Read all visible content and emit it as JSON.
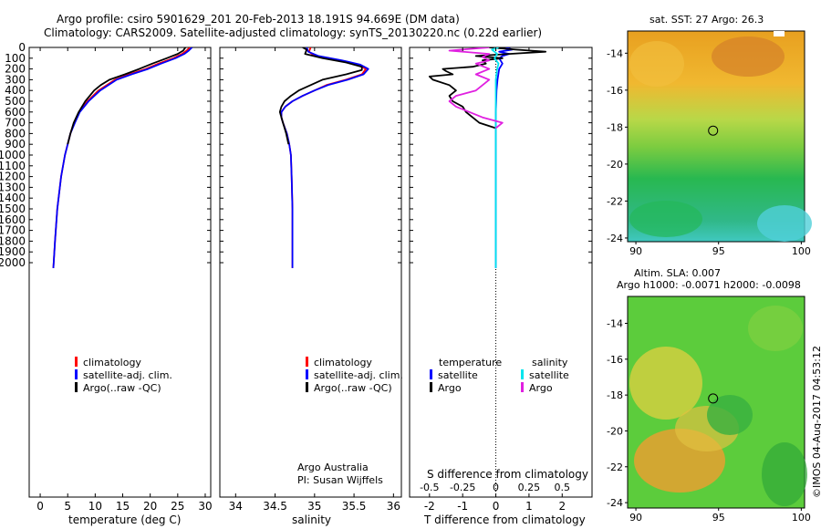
{
  "header": {
    "line1": "Argo profile: csiro 5901629_201 20-Feb-2013 18.191S 94.669E (DM data)",
    "line2": "Climatology: CARS2009. Satellite-adjusted climatology: synTS_20130220.nc (0.22d earlier)"
  },
  "colors": {
    "climatology": "#ff0000",
    "satellite": "#0000ff",
    "argo": "#000000",
    "sal_satellite": "#00e5ee",
    "sal_argo": "#e020e0"
  },
  "depth_ticks": [
    "0",
    "100",
    "200",
    "300",
    "400",
    "500",
    "600",
    "700",
    "800",
    "900",
    "1000",
    "1100",
    "1200",
    "1300",
    "1400",
    "1500",
    "1600",
    "1700",
    "1800",
    "1900",
    "2000"
  ],
  "chart_data": [
    {
      "type": "line",
      "xlabel": "temperature (deg C)",
      "ylabel": "",
      "xlim": [
        -2,
        31
      ],
      "ylim": [
        2050,
        0
      ],
      "xticks": [
        "0",
        "5",
        "10",
        "15",
        "20",
        "25",
        "30"
      ],
      "legend": [
        "climatology",
        "satellite-adj. clim.",
        "Argo(..raw -QC)"
      ],
      "series": [
        {
          "name": "climatology",
          "depth": [
            0,
            30,
            60,
            100,
            150,
            200,
            250,
            300,
            400,
            500,
            600,
            700,
            800,
            1000,
            1200,
            1500,
            1800,
            2050
          ],
          "values": [
            27.2,
            26.6,
            25.8,
            24.2,
            21.5,
            19.2,
            16.2,
            13.6,
            10.6,
            8.6,
            7.1,
            6.2,
            5.5,
            4.5,
            3.8,
            3.1,
            2.7,
            2.4
          ]
        },
        {
          "name": "satellite-adj. clim.",
          "depth": [
            0,
            30,
            60,
            100,
            150,
            200,
            250,
            300,
            400,
            500,
            600,
            700,
            800,
            1000,
            1200,
            1500,
            1800,
            2050
          ],
          "values": [
            27.6,
            27.0,
            26.2,
            24.6,
            22.0,
            19.6,
            16.6,
            13.9,
            10.9,
            8.8,
            7.2,
            6.3,
            5.5,
            4.5,
            3.8,
            3.1,
            2.7,
            2.4
          ]
        },
        {
          "name": "Argo(..raw -QC)",
          "depth": [
            0,
            30,
            60,
            100,
            150,
            200,
            250,
            300,
            350,
            400,
            500,
            600,
            700,
            800,
            900
          ],
          "values": [
            26.4,
            26.0,
            25.0,
            23.0,
            20.4,
            18.0,
            15.4,
            12.6,
            11.0,
            9.8,
            8.2,
            7.0,
            6.1,
            5.5,
            5.0
          ]
        }
      ]
    },
    {
      "type": "line",
      "xlabel": "salinity",
      "ylabel": "",
      "xlim": [
        33.8,
        36.1
      ],
      "ylim": [
        2050,
        0
      ],
      "xticks": [
        "34",
        "34.5",
        "35",
        "35.5",
        "36"
      ],
      "legend": [
        "climatology",
        "satellite-adj. clim.",
        "Argo(..raw -QC)"
      ],
      "annotation": [
        "Argo Australia",
        "PI: Susan Wijffels"
      ],
      "series": [
        {
          "name": "climatology",
          "depth": [
            0,
            40,
            80,
            120,
            160,
            200,
            250,
            300,
            350,
            400,
            450,
            500,
            550,
            600,
            650,
            700,
            800,
            900,
            1000,
            1200,
            1500,
            2050
          ],
          "values": [
            34.95,
            34.93,
            35.0,
            35.3,
            35.55,
            35.65,
            35.6,
            35.4,
            35.15,
            35.0,
            34.85,
            34.72,
            34.63,
            34.58,
            34.58,
            34.6,
            34.65,
            34.68,
            34.7,
            34.71,
            34.72,
            34.72
          ]
        },
        {
          "name": "satellite-adj. clim.",
          "depth": [
            0,
            40,
            80,
            120,
            160,
            200,
            250,
            300,
            350,
            400,
            450,
            500,
            550,
            600,
            650,
            700,
            800,
            900,
            1000,
            1200,
            1500,
            2050
          ],
          "values": [
            34.9,
            34.92,
            35.05,
            35.35,
            35.58,
            35.68,
            35.62,
            35.42,
            35.17,
            35.0,
            34.85,
            34.72,
            34.63,
            34.58,
            34.58,
            34.6,
            34.65,
            34.68,
            34.7,
            34.71,
            34.72,
            34.72
          ]
        },
        {
          "name": "Argo(..raw -QC)",
          "depth": [
            0,
            20,
            60,
            100,
            140,
            180,
            210,
            250,
            300,
            350,
            400,
            450,
            500,
            550,
            600,
            650,
            700,
            800,
            900
          ],
          "values": [
            34.85,
            34.9,
            34.88,
            35.1,
            35.4,
            35.6,
            35.6,
            35.4,
            35.1,
            34.95,
            34.8,
            34.7,
            34.62,
            34.58,
            34.56,
            34.58,
            34.6,
            34.64,
            34.67
          ]
        }
      ]
    },
    {
      "type": "line",
      "xlabel": "T difference from climatology",
      "x2label": "S difference from climatology",
      "xlim": [
        -2.6,
        2.9
      ],
      "ylim": [
        2050,
        0
      ],
      "xticks": [
        "-2",
        "-1",
        "0",
        "1",
        "2"
      ],
      "x2ticks": [
        "-0.5",
        "-0.25",
        "0",
        "0.25",
        "0.5"
      ],
      "legend_titles": [
        "temperature",
        "salinity"
      ],
      "legend": [
        "satellite",
        "Argo",
        "satellite",
        "Argo"
      ],
      "series": [
        {
          "name": "satellite",
          "depth": [
            0,
            20,
            40,
            60,
            80,
            100,
            150,
            200,
            300,
            400,
            600,
            800,
            1000,
            1500,
            2050
          ],
          "values": [
            0.3,
            0.5,
            0.1,
            0.4,
            0.2,
            0.1,
            0.2,
            0.1,
            0.05,
            0.02,
            0.0,
            0.0,
            0.0,
            0.0,
            0.0
          ]
        },
        {
          "name": "Argo",
          "depth": [
            0,
            20,
            40,
            60,
            80,
            100,
            120,
            150,
            180,
            200,
            220,
            250,
            270,
            300,
            350,
            400,
            450,
            500,
            550,
            600,
            650,
            700,
            750
          ],
          "values": [
            -0.2,
            0.6,
            1.5,
            0.4,
            -0.6,
            0.2,
            -0.4,
            -0.3,
            -0.7,
            -1.6,
            -1.5,
            -1.3,
            -2.0,
            -1.9,
            -1.4,
            -1.2,
            -1.4,
            -1.3,
            -1.0,
            -0.9,
            -0.7,
            -0.5,
            0.0
          ]
        },
        {
          "name": "satellite",
          "depth": [
            0,
            20,
            60,
            100,
            150,
            200,
            300,
            400,
            600,
            800,
            1000,
            1500,
            2050
          ],
          "values": [
            0.02,
            -0.03,
            0.01,
            -0.01,
            0.02,
            0.01,
            0.0,
            0.0,
            0.0,
            0.0,
            0.0,
            0.0,
            0.0
          ]
        },
        {
          "name": "Argo",
          "depth": [
            0,
            30,
            60,
            90,
            120,
            150,
            200,
            250,
            300,
            350,
            400,
            450,
            500,
            550,
            600,
            650,
            700,
            750
          ],
          "values": [
            -0.05,
            -0.35,
            -0.05,
            -0.1,
            -0.05,
            -0.15,
            -0.05,
            -0.15,
            -0.05,
            -0.1,
            -0.15,
            -0.3,
            -0.35,
            -0.3,
            -0.2,
            -0.1,
            0.05,
            0.0
          ]
        }
      ]
    }
  ],
  "maps": {
    "sst": {
      "title": "sat. SST: 27 Argo: 26.3",
      "yticks": [
        "-14",
        "-16",
        "-18",
        "-20",
        "-22",
        "-24"
      ],
      "xticks": [
        "90",
        "95",
        "100"
      ],
      "marker": [
        94.669,
        -18.191
      ]
    },
    "sla": {
      "title1": "Altim. SLA: 0.007",
      "title2": "Argo h1000: -0.0071 h2000: -0.0098",
      "yticks": [
        "-14",
        "-16",
        "-18",
        "-20",
        "-22",
        "-24"
      ],
      "xticks": [
        "90",
        "95",
        "100"
      ],
      "marker": [
        94.669,
        -18.191
      ]
    }
  },
  "credit": "©IMOS 04-Aug-2017 04:53:12"
}
